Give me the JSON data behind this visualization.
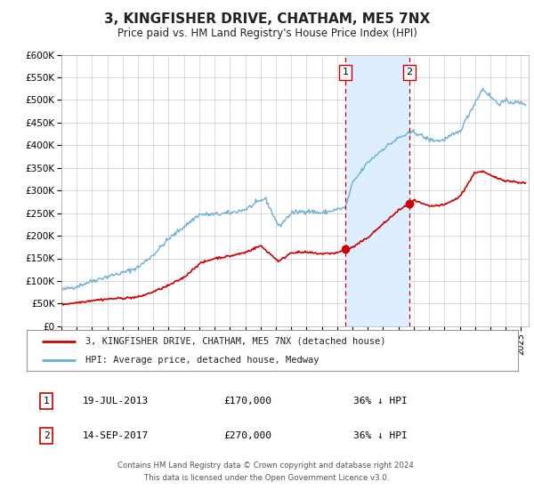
{
  "title": "3, KINGFISHER DRIVE, CHATHAM, ME5 7NX",
  "subtitle": "Price paid vs. HM Land Registry's House Price Index (HPI)",
  "title_fontsize": 11,
  "subtitle_fontsize": 8.5,
  "ylim": [
    0,
    600000
  ],
  "ytick_labels": [
    "£0",
    "£50K",
    "£100K",
    "£150K",
    "£200K",
    "£250K",
    "£300K",
    "£350K",
    "£400K",
    "£450K",
    "£500K",
    "£550K",
    "£600K"
  ],
  "ytick_values": [
    0,
    50000,
    100000,
    150000,
    200000,
    250000,
    300000,
    350000,
    400000,
    450000,
    500000,
    550000,
    600000
  ],
  "hpi_color": "#6baed6",
  "price_color": "#cc0000",
  "shade_color": "#ddeeff",
  "vline_color": "#cc0000",
  "marker_color": "#cc0000",
  "grid_color": "#cccccc",
  "background_color": "#ffffff",
  "plot_bg_color": "#ffffff",
  "marker1_x": 2013.54,
  "marker1_y": 170000,
  "marker2_x": 2017.71,
  "marker2_y": 270000,
  "shade_x1": 2013.54,
  "shade_x2": 2017.71,
  "legend_line1": "3, KINGFISHER DRIVE, CHATHAM, ME5 7NX (detached house)",
  "legend_line2": "HPI: Average price, detached house, Medway",
  "table_row1": [
    "1",
    "19-JUL-2013",
    "£170,000",
    "36% ↓ HPI"
  ],
  "table_row2": [
    "2",
    "14-SEP-2017",
    "£270,000",
    "36% ↓ HPI"
  ],
  "footer1": "Contains HM Land Registry data © Crown copyright and database right 2024.",
  "footer2": "This data is licensed under the Open Government Licence v3.0.",
  "xlim_start": 1995.0,
  "xlim_end": 2025.5,
  "hpi_key_years": [
    1995,
    1996,
    1997,
    1998,
    1999,
    2000,
    2001,
    2002,
    2003,
    2004,
    2005,
    2006,
    2007,
    2008.3,
    2009.2,
    2010,
    2011,
    2012,
    2013,
    2013.54,
    2014,
    2015,
    2016,
    2017,
    2017.71,
    2018,
    2019.0,
    2019.8,
    2021,
    2021.8,
    2022.5,
    2023.5,
    2024,
    2025.3
  ],
  "hpi_key_vals": [
    80000,
    88000,
    100000,
    110000,
    118000,
    130000,
    158000,
    193000,
    220000,
    247000,
    247000,
    250000,
    258000,
    283000,
    220000,
    250000,
    255000,
    250000,
    258000,
    262000,
    316000,
    362000,
    392000,
    416000,
    426000,
    430000,
    412000,
    410000,
    430000,
    482000,
    525000,
    492000,
    497000,
    492000
  ],
  "price_key_years": [
    1995,
    1996,
    1997,
    1998,
    1999,
    2000,
    2001,
    2002,
    2003,
    2004,
    2005,
    2006,
    2007,
    2008,
    2009.2,
    2010,
    2011,
    2012,
    2013,
    2013.54,
    2014,
    2015,
    2016,
    2017,
    2017.71,
    2018,
    2019,
    2020,
    2021,
    2022,
    2022.5,
    2023.2,
    2024,
    2025.3
  ],
  "price_key_vals": [
    48000,
    52000,
    57000,
    60000,
    62000,
    64000,
    76000,
    90000,
    108000,
    138000,
    150000,
    155000,
    163000,
    178000,
    143000,
    163000,
    163000,
    160000,
    162000,
    170000,
    174000,
    196000,
    226000,
    256000,
    270000,
    278000,
    265000,
    268000,
    286000,
    340000,
    342000,
    330000,
    322000,
    316000
  ]
}
